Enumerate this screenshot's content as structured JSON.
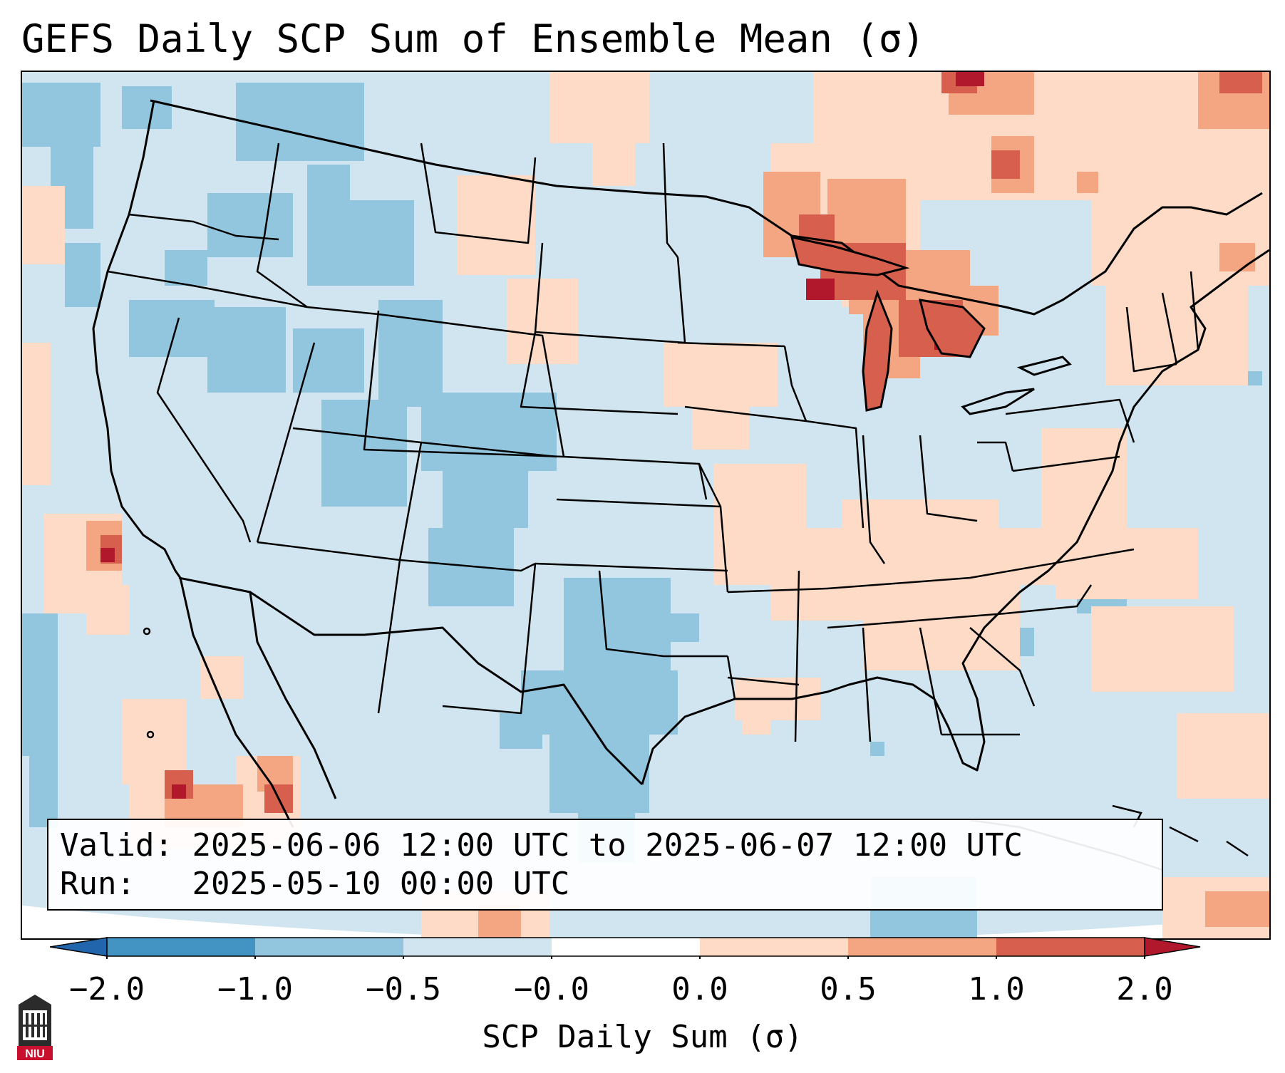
{
  "title": "GEFS Daily SCP Sum of Ensemble Mean (σ)",
  "map": {
    "region": "Contiguous United States",
    "variable": "SCP Daily Sum of Ensemble Mean (σ)",
    "highlight_areas": [
      {
        "area": "Upper Great Lakes / Michigan",
        "level": "1.0 to 2.0+"
      },
      {
        "area": "Southern Ontario / Quebec",
        "level": "0.5 to 2.0"
      },
      {
        "area": "Mid-Mississippi & Tennessee Valleys",
        "level": "0.0 to 0.5"
      },
      {
        "area": "Southern California coast",
        "level": "0.5 to 2.0"
      },
      {
        "area": "Interior West / Texas",
        "level": "-1.0 to -0.5"
      }
    ]
  },
  "info": {
    "valid_label": "Valid:",
    "valid_value": "2025-06-06 12:00 UTC to 2025-06-07 12:00 UTC",
    "run_label": "Run:",
    "run_value": "2025-05-10 00:00 UTC"
  },
  "colorbar": {
    "ticks": [
      "−2.0",
      "−1.0",
      "−0.5",
      "−0.0",
      "0.0",
      "0.5",
      "1.0",
      "2.0"
    ],
    "colors": [
      "#4393c3",
      "#92c5de",
      "#d1e5f0",
      "#ffffff",
      "#fddbc7",
      "#f4a582",
      "#d6604d"
    ],
    "under_color": "#2166ac",
    "over_color": "#b2182b",
    "label": "SCP Daily Sum (σ)"
  },
  "logo": {
    "text": "NIU",
    "name": "Northern Illinois University"
  }
}
